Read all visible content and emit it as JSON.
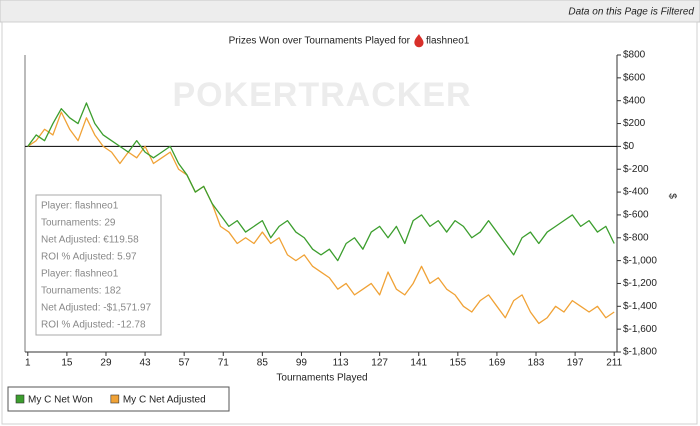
{
  "filter_notice": "Data on this Page is Filtered",
  "chart_data": {
    "type": "line",
    "title": "Prizes Won over Tournaments Played for",
    "title_player": "flashneo1",
    "watermark": "POKERTRACKER",
    "xlabel": "Tournaments Played",
    "ylabel": "$",
    "x": [
      1,
      4,
      7,
      10,
      13,
      16,
      19,
      22,
      25,
      28,
      31,
      34,
      37,
      40,
      43,
      46,
      49,
      52,
      55,
      58,
      61,
      64,
      67,
      70,
      73,
      76,
      79,
      82,
      85,
      88,
      91,
      94,
      97,
      100,
      103,
      106,
      109,
      112,
      115,
      118,
      121,
      124,
      127,
      130,
      133,
      136,
      139,
      142,
      145,
      148,
      151,
      154,
      157,
      160,
      163,
      166,
      169,
      172,
      175,
      178,
      181,
      184,
      187,
      190,
      193,
      196,
      199,
      202,
      205,
      208,
      211
    ],
    "series": [
      {
        "name": "My C Net Won",
        "color": "#3c9e2e",
        "values": [
          0,
          100,
          50,
          200,
          330,
          250,
          200,
          380,
          200,
          100,
          50,
          0,
          -50,
          50,
          -50,
          -100,
          -50,
          0,
          -150,
          -250,
          -400,
          -350,
          -500,
          -600,
          -700,
          -650,
          -750,
          -700,
          -650,
          -800,
          -700,
          -650,
          -750,
          -800,
          -900,
          -950,
          -900,
          -1000,
          -850,
          -800,
          -900,
          -750,
          -700,
          -800,
          -700,
          -850,
          -650,
          -600,
          -700,
          -650,
          -750,
          -650,
          -700,
          -800,
          -750,
          -650,
          -750,
          -850,
          -950,
          -800,
          -750,
          -850,
          -750,
          -700,
          -650,
          -600,
          -700,
          -650,
          -750,
          -700,
          -850
        ]
      },
      {
        "name": "My C Net Adjusted",
        "color": "#f0a236",
        "values": [
          0,
          50,
          150,
          100,
          300,
          150,
          50,
          250,
          100,
          0,
          -50,
          -150,
          -50,
          -100,
          0,
          -150,
          -100,
          -50,
          -200,
          -250,
          -400,
          -350,
          -500,
          -700,
          -750,
          -850,
          -800,
          -850,
          -750,
          -850,
          -800,
          -950,
          -1000,
          -950,
          -1050,
          -1100,
          -1150,
          -1250,
          -1200,
          -1300,
          -1250,
          -1200,
          -1300,
          -1100,
          -1250,
          -1300,
          -1200,
          -1050,
          -1200,
          -1150,
          -1250,
          -1300,
          -1400,
          -1450,
          -1350,
          -1300,
          -1400,
          -1500,
          -1350,
          -1300,
          -1450,
          -1550,
          -1500,
          -1400,
          -1450,
          -1350,
          -1400,
          -1450,
          -1400,
          -1500,
          -1450
        ]
      }
    ],
    "xlim": [
      0,
      212
    ],
    "xticks": [
      1,
      15,
      29,
      43,
      57,
      71,
      85,
      99,
      113,
      127,
      141,
      155,
      169,
      183,
      197,
      211
    ],
    "ylim": [
      -1800,
      800
    ],
    "yticks": [
      {
        "value": 800,
        "label": "$800"
      },
      {
        "value": 600,
        "label": "$600"
      },
      {
        "value": 400,
        "label": "$400"
      },
      {
        "value": 200,
        "label": "$200"
      },
      {
        "value": 0,
        "label": "$0"
      },
      {
        "value": -200,
        "label": "$-200"
      },
      {
        "value": -400,
        "label": "$-400"
      },
      {
        "value": -600,
        "label": "$-600"
      },
      {
        "value": -800,
        "label": "$-800"
      },
      {
        "value": -1000,
        "label": "$-1,000"
      },
      {
        "value": -1200,
        "label": "$-1,200"
      },
      {
        "value": -1400,
        "label": "$-1,400"
      },
      {
        "value": -1600,
        "label": "$-1,600"
      },
      {
        "value": -1800,
        "label": "$-1,800"
      }
    ],
    "tooltip": [
      "Player: flashneo1",
      "Tournaments: 29",
      "Net Adjusted: €119.58",
      "ROI % Adjusted: 5.97",
      "Player: flashneo1",
      "Tournaments: 182",
      "Net Adjusted: -$1,571.97",
      "ROI % Adjusted: -12.78"
    ]
  }
}
